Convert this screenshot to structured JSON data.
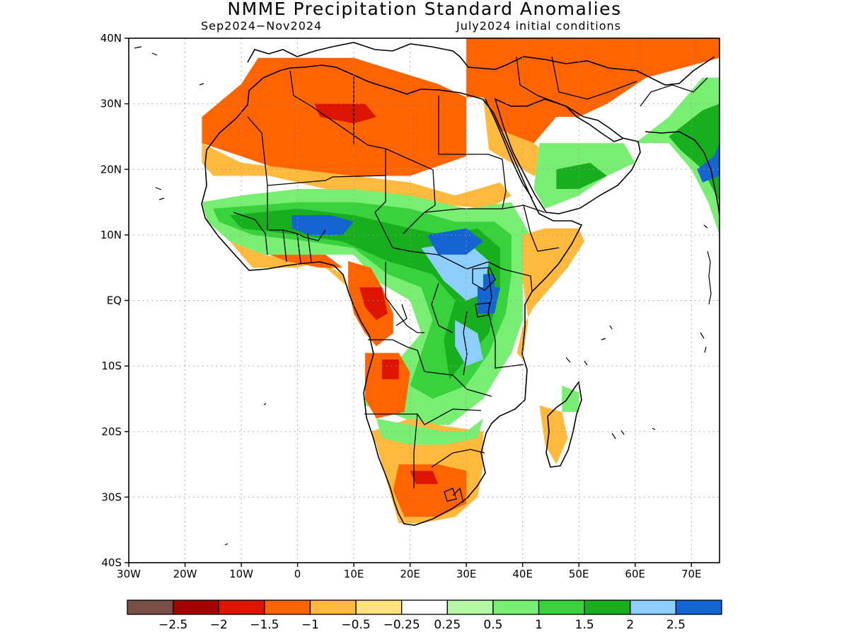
{
  "map": {
    "title": "NMME Precipitation Standard Anomalies",
    "season": "Sep2024−Nov2024",
    "init": "July2024 initial conditions",
    "lon_range": [
      -30,
      75
    ],
    "lat_range": [
      -40,
      40
    ],
    "grid": "dotted",
    "lat_ticks": [
      {
        "value": 40,
        "label": "40N"
      },
      {
        "value": 30,
        "label": "30N"
      },
      {
        "value": 20,
        "label": "20N"
      },
      {
        "value": 10,
        "label": "10N"
      },
      {
        "value": 0,
        "label": "EQ"
      },
      {
        "value": -10,
        "label": "10S"
      },
      {
        "value": -20,
        "label": "20S"
      },
      {
        "value": -30,
        "label": "30S"
      },
      {
        "value": -40,
        "label": "40S"
      }
    ],
    "lon_ticks": [
      {
        "value": -30,
        "label": "30W"
      },
      {
        "value": -20,
        "label": "20W"
      },
      {
        "value": -10,
        "label": "10W"
      },
      {
        "value": 0,
        "label": "0"
      },
      {
        "value": 10,
        "label": "10E"
      },
      {
        "value": 20,
        "label": "20E"
      },
      {
        "value": 30,
        "label": "30E"
      },
      {
        "value": 40,
        "label": "40E"
      },
      {
        "value": 50,
        "label": "50E"
      },
      {
        "value": 60,
        "label": "60E"
      },
      {
        "value": 70,
        "label": "70E"
      }
    ],
    "colorbar": {
      "colors": [
        "#7a5046",
        "#a50000",
        "#dd1400",
        "#ff6400",
        "#ffb93c",
        "#ffe27d",
        "#ffffff",
        "#b4f7a4",
        "#78ee73",
        "#37d23c",
        "#18af1e",
        "#8ccfff",
        "#1464d2"
      ],
      "labels": [
        "−2.5",
        "−2",
        "−1.5",
        "−1",
        "−0.5",
        "−0.25",
        "0.25",
        "0.5",
        "1",
        "1.5",
        "2",
        "2.5"
      ]
    },
    "anomaly_regions": [
      {
        "level": "-1",
        "lonlat": [
          [
            -7,
            37
          ],
          [
            10,
            37
          ],
          [
            25,
            33
          ],
          [
            30,
            31
          ],
          [
            30,
            22
          ],
          [
            20,
            19
          ],
          [
            10,
            19
          ],
          [
            0,
            19
          ],
          [
            -10,
            22
          ],
          [
            -17,
            24
          ],
          [
            -17,
            28
          ],
          [
            -10,
            33
          ]
        ]
      },
      {
        "level": "-0.5",
        "lonlat": [
          [
            -17,
            24
          ],
          [
            -10,
            21
          ],
          [
            0,
            20
          ],
          [
            10,
            19
          ],
          [
            20,
            18
          ],
          [
            28,
            16
          ],
          [
            36,
            18
          ],
          [
            38,
            16
          ],
          [
            34,
            14
          ],
          [
            20,
            15
          ],
          [
            5,
            17
          ],
          [
            -5,
            19
          ],
          [
            -15,
            19
          ],
          [
            -17,
            21
          ]
        ]
      },
      {
        "level": "-1.5",
        "lonlat": [
          [
            3,
            30
          ],
          [
            12,
            30
          ],
          [
            14,
            28
          ],
          [
            10,
            27
          ],
          [
            4,
            28
          ]
        ]
      },
      {
        "level": "-1",
        "lonlat": [
          [
            30,
            41
          ],
          [
            75,
            41
          ],
          [
            75,
            37
          ],
          [
            62,
            34
          ],
          [
            55,
            30
          ],
          [
            50,
            28
          ],
          [
            46,
            28
          ],
          [
            42,
            24
          ],
          [
            36,
            26
          ],
          [
            33,
            31
          ],
          [
            30,
            31
          ]
        ]
      },
      {
        "level": "-0.5",
        "lonlat": [
          [
            33,
            31
          ],
          [
            36,
            26
          ],
          [
            42,
            24
          ],
          [
            46,
            21
          ],
          [
            42,
            19
          ],
          [
            38,
            21
          ],
          [
            34,
            23
          ]
        ]
      },
      {
        "level": "0.5",
        "lonlat": [
          [
            43,
            24
          ],
          [
            50,
            24
          ],
          [
            58,
            24
          ],
          [
            60,
            21
          ],
          [
            55,
            19
          ],
          [
            50,
            16
          ],
          [
            44,
            14
          ],
          [
            42,
            17
          ]
        ]
      },
      {
        "level": "1.5",
        "lonlat": [
          [
            46,
            20
          ],
          [
            52,
            21
          ],
          [
            55,
            19
          ],
          [
            50,
            17
          ],
          [
            46,
            17
          ]
        ]
      },
      {
        "level": "0.5",
        "lonlat": [
          [
            60,
            24
          ],
          [
            66,
            28
          ],
          [
            72,
            34
          ],
          [
            75,
            34
          ],
          [
            75,
            10
          ],
          [
            73,
            15
          ],
          [
            70,
            20
          ],
          [
            66,
            24
          ]
        ]
      },
      {
        "level": "1.5",
        "lonlat": [
          [
            66,
            25
          ],
          [
            72,
            29
          ],
          [
            75,
            30
          ],
          [
            75,
            15
          ],
          [
            72,
            20
          ],
          [
            68,
            23
          ]
        ]
      },
      {
        "level": "2.5",
        "lonlat": [
          [
            71,
            20
          ],
          [
            74,
            22
          ],
          [
            75,
            24
          ],
          [
            75,
            19
          ],
          [
            72,
            18
          ]
        ]
      },
      {
        "level": "0.5",
        "lonlat": [
          [
            -17,
            15
          ],
          [
            -10,
            16
          ],
          [
            0,
            17
          ],
          [
            10,
            17
          ],
          [
            20,
            16
          ],
          [
            30,
            14
          ],
          [
            38,
            15
          ],
          [
            40,
            12
          ],
          [
            42,
            9
          ],
          [
            40,
            4
          ],
          [
            40,
            -3
          ],
          [
            38,
            -8
          ],
          [
            33,
            -15
          ],
          [
            27,
            -19
          ],
          [
            22,
            -19
          ],
          [
            16,
            -17
          ],
          [
            12,
            -16
          ],
          [
            12,
            -11
          ],
          [
            18,
            -9
          ],
          [
            22,
            -5
          ],
          [
            20,
            0
          ],
          [
            14,
            3
          ],
          [
            10,
            7
          ],
          [
            3,
            7
          ],
          [
            -6,
            7
          ],
          [
            -12,
            9
          ],
          [
            -16,
            12
          ]
        ]
      },
      {
        "level": "1",
        "lonlat": [
          [
            -15,
            14
          ],
          [
            0,
            15
          ],
          [
            10,
            15
          ],
          [
            20,
            14
          ],
          [
            28,
            12
          ],
          [
            35,
            12
          ],
          [
            38,
            10
          ],
          [
            38,
            4
          ],
          [
            37,
            -2
          ],
          [
            34,
            -8
          ],
          [
            30,
            -13
          ],
          [
            24,
            -15
          ],
          [
            20,
            -13
          ],
          [
            22,
            -8
          ],
          [
            24,
            -3
          ],
          [
            22,
            2
          ],
          [
            16,
            4
          ],
          [
            10,
            8
          ],
          [
            2,
            9
          ],
          [
            -8,
            10
          ],
          [
            -14,
            12
          ]
        ]
      },
      {
        "level": "1.5",
        "lonlat": [
          [
            -12,
            13
          ],
          [
            0,
            14
          ],
          [
            10,
            13
          ],
          [
            20,
            11
          ],
          [
            26,
            10
          ],
          [
            32,
            11
          ],
          [
            36,
            8
          ],
          [
            36,
            2
          ],
          [
            34,
            -5
          ],
          [
            30,
            -9
          ],
          [
            27,
            -12
          ],
          [
            26,
            -6
          ],
          [
            28,
            0
          ],
          [
            24,
            4
          ],
          [
            16,
            6
          ],
          [
            8,
            9
          ],
          [
            0,
            10
          ],
          [
            -10,
            11
          ]
        ]
      },
      {
        "level": "2",
        "lonlat": [
          [
            22,
            8
          ],
          [
            30,
            9
          ],
          [
            34,
            6
          ],
          [
            33,
            1
          ],
          [
            30,
            0
          ],
          [
            26,
            3
          ]
        ]
      },
      {
        "level": "2",
        "lonlat": [
          [
            28,
            -3
          ],
          [
            32,
            -5
          ],
          [
            33,
            -9
          ],
          [
            30,
            -10
          ],
          [
            28,
            -7
          ]
        ]
      },
      {
        "level": "2.5",
        "lonlat": [
          [
            -1,
            13
          ],
          [
            6,
            13
          ],
          [
            10,
            12
          ],
          [
            8,
            10
          ],
          [
            2,
            10
          ],
          [
            -1,
            11
          ]
        ]
      },
      {
        "level": "2.5",
        "lonlat": [
          [
            23,
            10
          ],
          [
            30,
            11
          ],
          [
            33,
            9
          ],
          [
            30,
            7
          ],
          [
            25,
            7
          ]
        ]
      },
      {
        "level": "2.5",
        "lonlat": [
          [
            32,
            2
          ],
          [
            36,
            2
          ],
          [
            35,
            -2
          ],
          [
            32,
            -2
          ]
        ]
      },
      {
        "level": "2.5",
        "lonlat": [
          [
            33,
            4
          ],
          [
            35,
            4
          ],
          [
            35,
            2
          ],
          [
            33,
            2
          ]
        ]
      },
      {
        "level": "-0.5",
        "lonlat": [
          [
            40,
            10
          ],
          [
            44,
            11
          ],
          [
            50,
            11
          ],
          [
            51,
            9
          ],
          [
            48,
            5
          ],
          [
            45,
            2
          ],
          [
            42,
            -1
          ],
          [
            40,
            -4
          ],
          [
            39,
            -8
          ],
          [
            40,
            -9
          ],
          [
            41,
            -3
          ],
          [
            40,
            3
          ]
        ]
      },
      {
        "level": "-0.5",
        "lonlat": [
          [
            -12,
            9
          ],
          [
            -8,
            5
          ],
          [
            -4,
            5
          ],
          [
            0,
            5
          ],
          [
            4,
            6
          ],
          [
            8,
            4
          ],
          [
            9,
            2
          ],
          [
            5,
            5
          ],
          [
            0,
            6
          ],
          [
            -6,
            7
          ]
        ]
      },
      {
        "level": "-1",
        "lonlat": [
          [
            -5,
            7
          ],
          [
            0,
            7
          ],
          [
            5,
            7
          ],
          [
            8,
            5
          ],
          [
            4,
            5
          ],
          [
            -2,
            6
          ]
        ]
      },
      {
        "level": "-1",
        "lonlat": [
          [
            9,
            6
          ],
          [
            13,
            5
          ],
          [
            15,
            2
          ],
          [
            17,
            -2
          ],
          [
            17,
            -5
          ],
          [
            14,
            -7
          ],
          [
            12,
            -5
          ],
          [
            10,
            -2
          ],
          [
            9,
            2
          ]
        ]
      },
      {
        "level": "-1.5",
        "lonlat": [
          [
            11,
            2
          ],
          [
            15,
            2
          ],
          [
            16,
            -2
          ],
          [
            14,
            -3
          ],
          [
            12,
            -1
          ]
        ]
      },
      {
        "level": "-1",
        "lonlat": [
          [
            12,
            -8
          ],
          [
            18,
            -8
          ],
          [
            20,
            -11
          ],
          [
            19,
            -17
          ],
          [
            14,
            -18
          ],
          [
            12,
            -15
          ]
        ]
      },
      {
        "level": "-1.5",
        "lonlat": [
          [
            15,
            -9
          ],
          [
            18,
            -9
          ],
          [
            18,
            -12
          ],
          [
            15,
            -12
          ]
        ]
      },
      {
        "level": "-0.5",
        "lonlat": [
          [
            13,
            -20
          ],
          [
            20,
            -18
          ],
          [
            25,
            -19
          ],
          [
            33,
            -20
          ],
          [
            33,
            -25
          ],
          [
            32,
            -30
          ],
          [
            28,
            -33
          ],
          [
            22,
            -34
          ],
          [
            18,
            -34
          ],
          [
            16,
            -28
          ],
          [
            14,
            -22
          ]
        ]
      },
      {
        "level": "-1",
        "lonlat": [
          [
            18,
            -25
          ],
          [
            25,
            -25
          ],
          [
            30,
            -26
          ],
          [
            30,
            -31
          ],
          [
            25,
            -33
          ],
          [
            19,
            -33
          ],
          [
            17,
            -29
          ]
        ]
      },
      {
        "level": "-1.5",
        "lonlat": [
          [
            20,
            -26
          ],
          [
            24,
            -26
          ],
          [
            25,
            -28
          ],
          [
            21,
            -28
          ]
        ]
      },
      {
        "level": "0.5",
        "lonlat": [
          [
            14,
            -18
          ],
          [
            20,
            -19
          ],
          [
            26,
            -20
          ],
          [
            30,
            -20
          ],
          [
            33,
            -18
          ],
          [
            32,
            -21
          ],
          [
            26,
            -22
          ],
          [
            20,
            -22
          ],
          [
            15,
            -21
          ]
        ]
      },
      {
        "level": "-0.5",
        "lonlat": [
          [
            43,
            -16
          ],
          [
            47,
            -17
          ],
          [
            48,
            -21
          ],
          [
            46,
            -25
          ],
          [
            44,
            -22
          ]
        ]
      },
      {
        "level": "0.5",
        "lonlat": [
          [
            47,
            -13
          ],
          [
            50,
            -14
          ],
          [
            50,
            -17
          ],
          [
            47,
            -17
          ]
        ]
      }
    ]
  }
}
